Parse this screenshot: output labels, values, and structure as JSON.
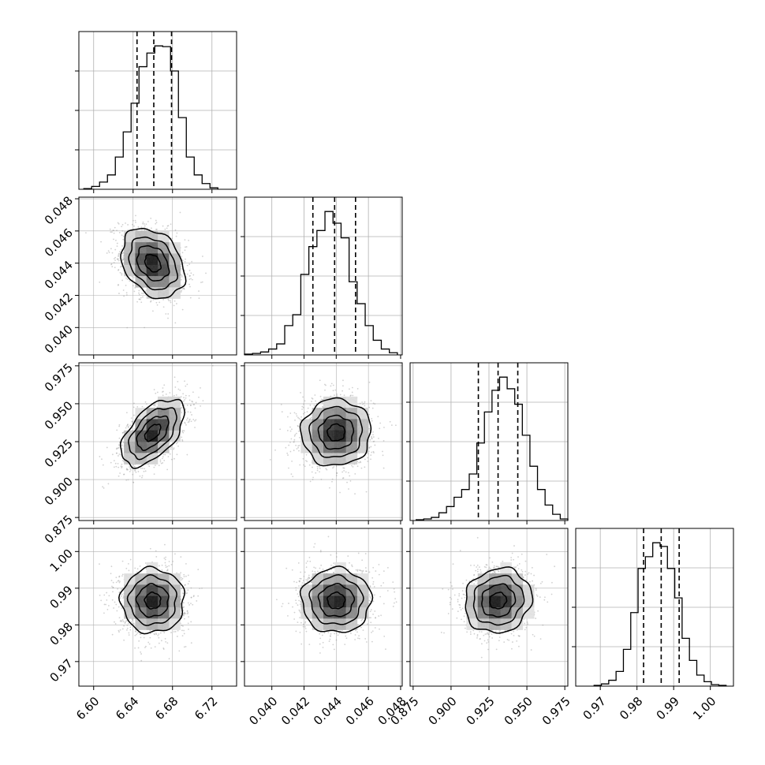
{
  "chart_data": {
    "type": "corner",
    "colors": {
      "hist": "#000000",
      "grid": "#b0b0b0",
      "density": "#000000",
      "scatter": "#9a9a9a",
      "frame": "#000000"
    },
    "params": [
      {
        "range": [
          6.585,
          6.745
        ],
        "ticks": [
          6.6,
          6.64,
          6.68,
          6.72
        ],
        "tick_labels": [
          "6.60",
          "6.64",
          "6.68",
          "6.72"
        ],
        "mean": 6.66,
        "std": 0.016,
        "quantiles": [
          6.644,
          6.661,
          6.679
        ],
        "hist_bins": [
          6.59,
          6.598,
          6.606,
          6.614,
          6.622,
          6.63,
          6.638,
          6.646,
          6.654,
          6.662,
          6.67,
          6.678,
          6.686,
          6.694,
          6.702,
          6.71,
          6.718,
          6.726
        ],
        "hist_counts": [
          1,
          4,
          10,
          20,
          45,
          80,
          120,
          171,
          190,
          200,
          199,
          165,
          100,
          45,
          20,
          8,
          2
        ]
      },
      {
        "range": [
          0.0383,
          0.0481
        ],
        "ticks": [
          0.04,
          0.042,
          0.044,
          0.046,
          0.048
        ],
        "tick_labels": [
          "0.040",
          "0.042",
          "0.044",
          "0.046",
          "0.048"
        ],
        "mean": 0.044,
        "std": 0.00108,
        "quantiles": [
          0.04255,
          0.0439,
          0.0452
        ],
        "hist_bins": [
          0.0383,
          0.0388,
          0.0393,
          0.0398,
          0.0403,
          0.0408,
          0.0413,
          0.0418,
          0.0423,
          0.0428,
          0.0433,
          0.0438,
          0.0443,
          0.0448,
          0.0453,
          0.0458,
          0.0463,
          0.0468,
          0.0473,
          0.0478
        ],
        "hist_counts": [
          1,
          2,
          4,
          8,
          15,
          40,
          55,
          110,
          148,
          170,
          196,
          180,
          160,
          100,
          70,
          40,
          20,
          8,
          3
        ]
      },
      {
        "range": [
          0.873,
          0.977
        ],
        "ticks": [
          0.875,
          0.9,
          0.925,
          0.95,
          0.975
        ],
        "tick_labels": [
          "0.875",
          "0.900",
          "0.925",
          "0.950",
          "0.975"
        ],
        "mean": 0.931,
        "std": 0.011,
        "quantiles": [
          0.918,
          0.931,
          0.944
        ],
        "hist_bins": [
          0.877,
          0.882,
          0.887,
          0.892,
          0.897,
          0.902,
          0.907,
          0.912,
          0.917,
          0.922,
          0.927,
          0.932,
          0.937,
          0.942,
          0.947,
          0.952,
          0.957,
          0.962,
          0.967,
          0.972,
          0.977
        ],
        "hist_counts": [
          1,
          2,
          4,
          10,
          18,
          30,
          40,
          60,
          100,
          140,
          168,
          185,
          170,
          150,
          110,
          70,
          40,
          20,
          8,
          2
        ]
      },
      {
        "range": [
          0.9633,
          1.0063
        ],
        "ticks": [
          0.97,
          0.98,
          0.99,
          1.0
        ],
        "tick_labels": [
          "0.97",
          "0.98",
          "0.99",
          "1.00"
        ],
        "mean": 0.9866,
        "std": 0.0044,
        "quantiles": [
          0.9818,
          0.9866,
          0.9915
        ],
        "hist_bins": [
          0.9683,
          0.9703,
          0.9723,
          0.9743,
          0.9763,
          0.9783,
          0.9803,
          0.9823,
          0.9843,
          0.9863,
          0.9883,
          0.9903,
          0.9923,
          0.9943,
          0.9963,
          0.9983,
          1.0003,
          1.0023,
          1.0043
        ],
        "hist_counts": [
          1,
          3,
          8,
          20,
          50,
          100,
          160,
          176,
          195,
          190,
          160,
          120,
          65,
          35,
          15,
          6,
          2,
          1
        ]
      }
    ],
    "pairs": [
      {
        "row": 1,
        "col": 0,
        "corr": -0.3
      },
      {
        "row": 2,
        "col": 0,
        "corr": 0.55
      },
      {
        "row": 2,
        "col": 1,
        "corr": 0.02
      },
      {
        "row": 3,
        "col": 0,
        "corr": 0.0
      },
      {
        "row": 3,
        "col": 1,
        "corr": 0.0
      },
      {
        "row": 3,
        "col": 2,
        "corr": 0.1
      }
    ],
    "contour_levels_sigma": [
      0.5,
      1.0,
      1.5,
      2.0
    ],
    "grid": true
  }
}
